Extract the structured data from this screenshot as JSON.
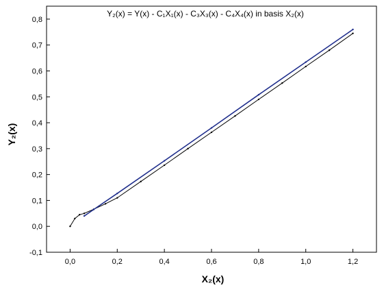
{
  "chart_data": {
    "type": "line",
    "title": "Y₂(x) = Y(x) - C₁X₁(x) - C₃X₃(x) - C₄X₄(x) in basis X₂(x)",
    "xlabel": "X₂(x)",
    "ylabel": "Y₂(x)",
    "xlim": [
      -0.1,
      1.3
    ],
    "ylim": [
      -0.1,
      0.85
    ],
    "xticks": [
      0.0,
      0.2,
      0.4,
      0.6,
      0.8,
      1.0,
      1.2
    ],
    "xtick_labels": [
      "0,0",
      "0,2",
      "0,4",
      "0,6",
      "0,8",
      "1,0",
      "1,2"
    ],
    "yticks": [
      -0.1,
      0.0,
      0.1,
      0.2,
      0.3,
      0.4,
      0.5,
      0.6,
      0.7,
      0.8
    ],
    "ytick_labels": [
      "-0,1",
      "0,0",
      "0,1",
      "0,2",
      "0,3",
      "0,4",
      "0,5",
      "0,6",
      "0,7",
      "0,8"
    ],
    "grid": false,
    "series": [
      {
        "color": "#000000",
        "x": [
          0.0,
          0.02,
          0.04,
          0.06,
          0.1,
          0.15,
          0.2,
          0.3,
          0.4,
          0.5,
          0.6,
          0.7,
          0.8,
          0.9,
          1.0,
          1.1,
          1.2
        ],
        "y": [
          0.0,
          0.03,
          0.045,
          0.05,
          0.066,
          0.087,
          0.11,
          0.173,
          0.236,
          0.3,
          0.363,
          0.426,
          0.49,
          0.553,
          0.617,
          0.68,
          0.745
        ]
      },
      {
        "color": "#1f2e8c",
        "x": [
          0.06,
          0.1,
          0.2,
          0.4,
          0.6,
          0.8,
          1.0,
          1.2
        ],
        "y": [
          0.04,
          0.065,
          0.127,
          0.253,
          0.38,
          0.508,
          0.634,
          0.76
        ]
      }
    ]
  }
}
